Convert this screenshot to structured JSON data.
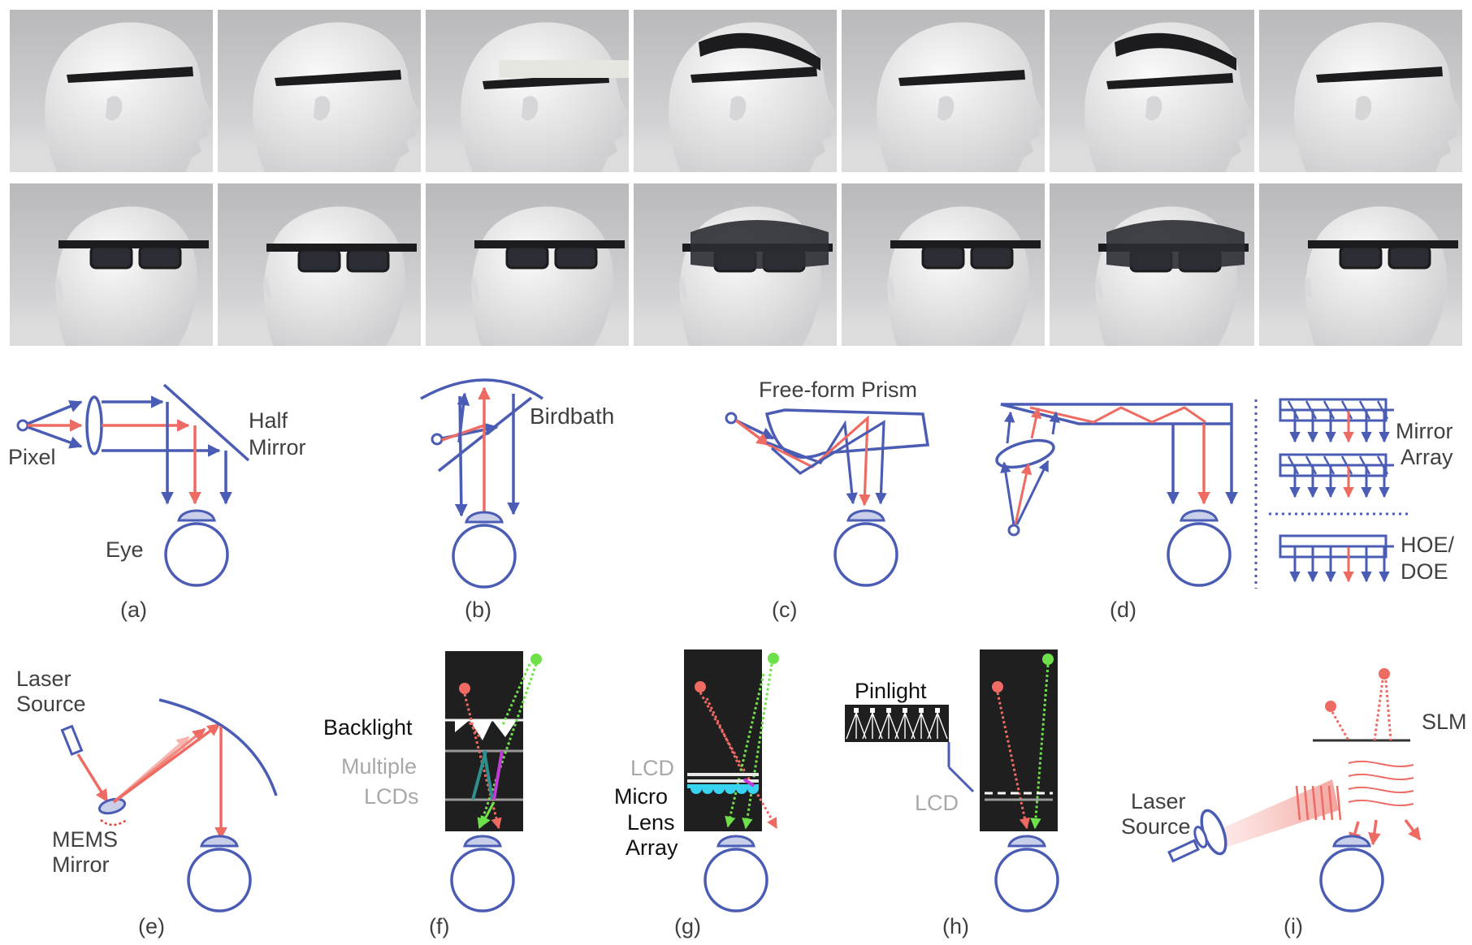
{
  "colors": {
    "blue": "#4a5cb4",
    "red": "#ee6b63",
    "light_red": "#f5b4ae",
    "lens_fill": "#c9cfe9",
    "green": "#6ee04a",
    "magenta": "#c23bd8",
    "teal": "#2f8f8f",
    "cyan": "#37d3f0",
    "panel": "#1f1f1f",
    "label": "#404040",
    "grey_label": "#a8a8a8",
    "photo_bg": "#c9c9cb",
    "mannequin": "#ececec",
    "device": "#1c1c1e"
  },
  "photos": {
    "row1": [
      "hmd-side-1",
      "hmd-side-2",
      "hmd-side-3",
      "hmd-side-4",
      "hmd-side-5",
      "hmd-side-6",
      "hmd-side-7"
    ],
    "row2": [
      "hmd-front-1",
      "hmd-front-2",
      "hmd-front-3",
      "hmd-front-4",
      "hmd-front-5",
      "hmd-front-6",
      "hmd-front-7"
    ]
  },
  "diagrams": {
    "a": {
      "caption": "(a)",
      "pixel": "Pixel",
      "half": "Half",
      "mirror": "Mirror",
      "eye": "Eye"
    },
    "b": {
      "caption": "(b)",
      "birdbath": "Birdbath"
    },
    "c": {
      "caption": "(c)",
      "prism": "Free-form Prism"
    },
    "d": {
      "caption": "(d)",
      "mirror": "Mirror",
      "array": "Array",
      "hoe": "HOE/",
      "doe": "DOE"
    },
    "e": {
      "caption": "(e)",
      "laser": "Laser",
      "source": "Source",
      "mems": "MEMS",
      "mirror": "Mirror"
    },
    "f": {
      "caption": "(f)",
      "backlight": "Backlight",
      "multiple": "Multiple",
      "lcds": "LCDs"
    },
    "g": {
      "caption": "(g)",
      "lcd": "LCD",
      "micro": "Micro",
      "lens": "Lens",
      "array": "Array"
    },
    "h": {
      "caption": "(h)",
      "pinlight": "Pinlight",
      "lcd": "LCD"
    },
    "i": {
      "caption": "(i)",
      "slm": "SLM",
      "laser": "Laser",
      "source": "Source"
    }
  }
}
